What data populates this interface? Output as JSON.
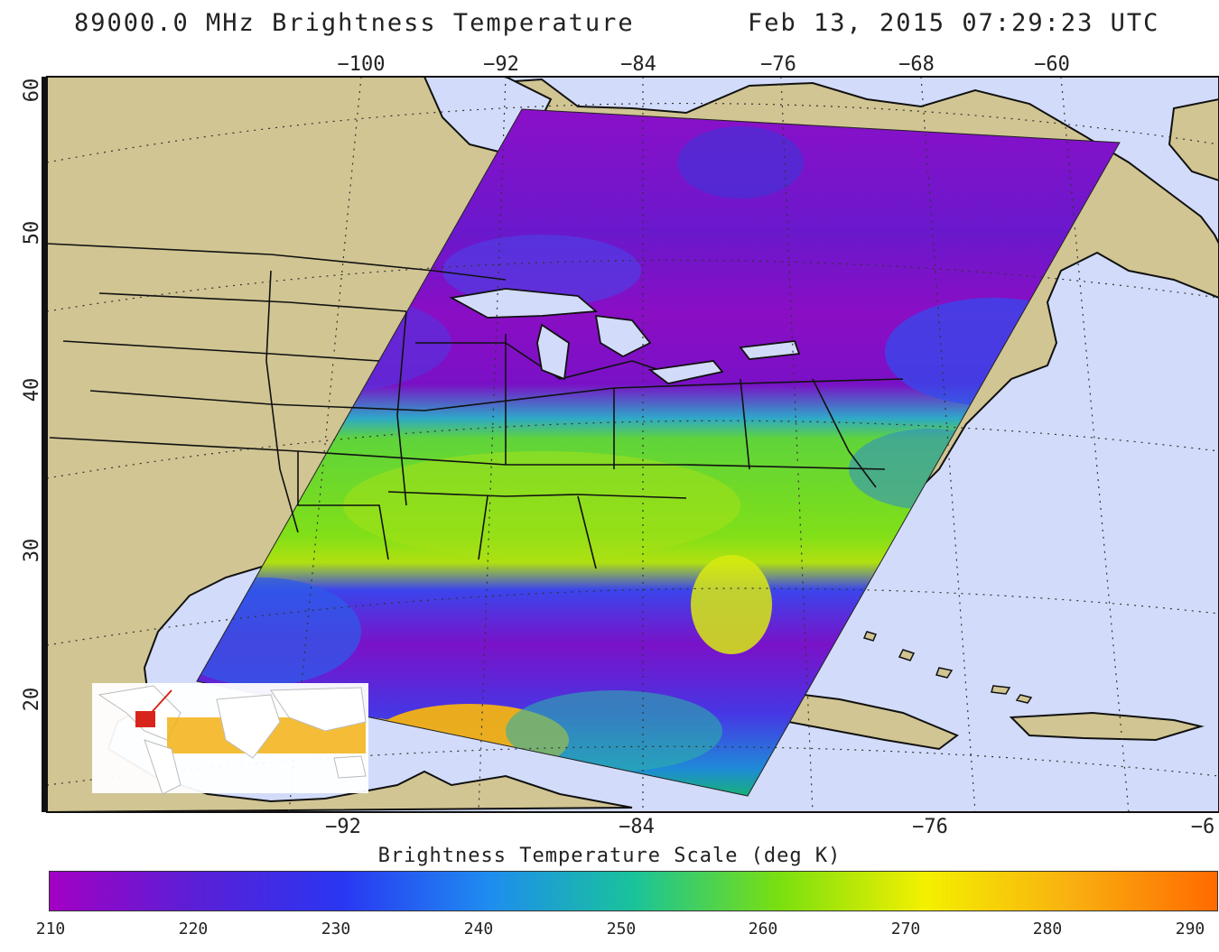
{
  "title": {
    "left": "89000.0 MHz Brightness Temperature",
    "right": "Feb 13, 2015 07:29:23 UTC"
  },
  "top_lon_labels": [
    "−100",
    "−92",
    "−84",
    "−76",
    "−68",
    "−60"
  ],
  "bottom_lon_labels": [
    "−92",
    "−84",
    "−76",
    "−6"
  ],
  "lat_labels": [
    "60",
    "50",
    "40",
    "30",
    "20"
  ],
  "colorbar": {
    "title": "Brightness Temperature Scale (deg K)",
    "ticks": [
      "210",
      "220",
      "230",
      "240",
      "250",
      "260",
      "270",
      "280",
      "290"
    ],
    "colors": [
      "#a300c4",
      "#5a1fd6",
      "#2a36f2",
      "#1e8cf0",
      "#19c39a",
      "#7adf10",
      "#f4f000",
      "#f9b010",
      "#ff6a00"
    ]
  },
  "colors": {
    "land": "#d1c593",
    "ocean": "#d2dcfa",
    "coast": "#111111"
  }
}
